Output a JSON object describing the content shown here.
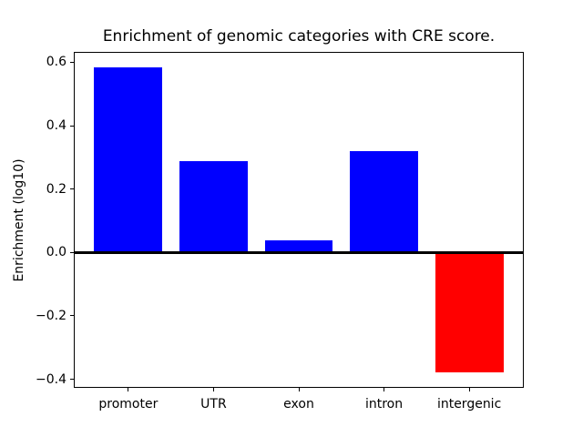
{
  "chart_data": {
    "type": "bar",
    "title": "Enrichment of genomic categories with CRE score.",
    "xlabel": "",
    "ylabel": "Enrichment (log10)",
    "categories": [
      "promoter",
      "UTR",
      "exon",
      "intron",
      "intergenic"
    ],
    "values": [
      0.585,
      0.288,
      0.037,
      0.32,
      -0.378
    ],
    "bar_colors": [
      "#0000ff",
      "#0000ff",
      "#0000ff",
      "#0000ff",
      "#ff0000"
    ],
    "positive_color": "#0000ff",
    "negative_color": "#ff0000",
    "bar_width": 0.8,
    "xlim": [
      -0.64,
      4.64
    ],
    "ylim": [
      -0.427,
      0.633
    ],
    "yticks": [
      0.6,
      0.4,
      0.2,
      0.0,
      -0.2,
      -0.4
    ],
    "ytick_labels": [
      "0.6",
      "0.4",
      "0.2",
      "0.0",
      "−0.2",
      "−0.4"
    ],
    "zero_line": true,
    "grid": false,
    "legend": false,
    "background_color": "#ffffff",
    "axis_color": "#000000"
  }
}
